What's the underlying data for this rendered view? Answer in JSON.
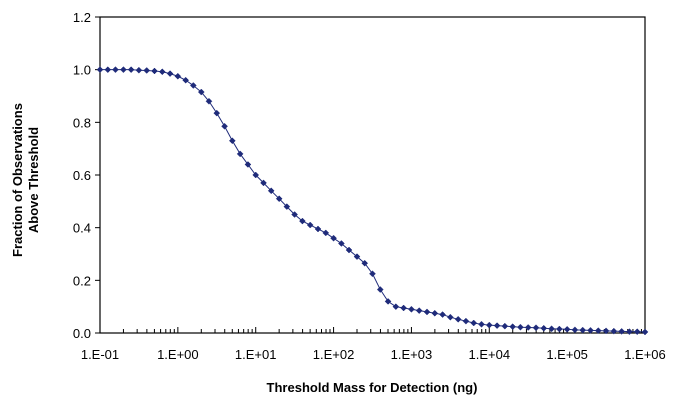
{
  "chart_data": {
    "type": "line",
    "title": "",
    "xlabel": "Threshold Mass for Detection (ng)",
    "ylabel_line1": "Fraction of Observations",
    "ylabel_line2": "Above Threshold",
    "x_scale": "log",
    "xlim": [
      0.1,
      1000000
    ],
    "ylim": [
      0.0,
      1.2
    ],
    "grid": false,
    "legend": "none",
    "x_tick_labels": [
      "1.E-01",
      "1.E+00",
      "1.E+01",
      "1.E+02",
      "1.E+03",
      "1.E+04",
      "1.E+05",
      "1.E+06"
    ],
    "y_tick_labels": [
      "0.0",
      "0.2",
      "0.4",
      "0.6",
      "0.8",
      "1.0",
      "1.2"
    ],
    "series": [
      {
        "color": "#1f2b7a",
        "marker": "diamond",
        "x": [
          0.1,
          0.126,
          0.158,
          0.2,
          0.251,
          0.316,
          0.398,
          0.501,
          0.631,
          0.794,
          1.0,
          1.26,
          1.58,
          2.0,
          2.51,
          3.16,
          3.98,
          5.01,
          6.31,
          7.94,
          10.0,
          12.6,
          15.8,
          20.0,
          25.1,
          31.6,
          39.8,
          50.1,
          63.1,
          79.4,
          100,
          126,
          158,
          200,
          251,
          316,
          398,
          501,
          631,
          794,
          1000,
          1259,
          1585,
          1995,
          2512,
          3162,
          3981,
          5012,
          6310,
          7943,
          10000,
          12589,
          15849,
          19953,
          25119,
          31623,
          39811,
          50119,
          63096,
          79433,
          100000,
          125893,
          158489,
          199526,
          251189,
          316228,
          398107,
          501187,
          630957,
          794328,
          1000000
        ],
        "y": [
          1.0,
          1.0,
          1.0,
          1.0,
          1.0,
          0.998,
          0.997,
          0.995,
          0.992,
          0.985,
          0.975,
          0.96,
          0.94,
          0.915,
          0.88,
          0.835,
          0.785,
          0.73,
          0.68,
          0.64,
          0.6,
          0.57,
          0.54,
          0.51,
          0.48,
          0.45,
          0.425,
          0.41,
          0.395,
          0.38,
          0.36,
          0.34,
          0.315,
          0.29,
          0.265,
          0.225,
          0.165,
          0.12,
          0.1,
          0.095,
          0.09,
          0.085,
          0.08,
          0.075,
          0.07,
          0.06,
          0.052,
          0.045,
          0.038,
          0.033,
          0.03,
          0.028,
          0.026,
          0.024,
          0.022,
          0.021,
          0.02,
          0.018,
          0.016,
          0.015,
          0.014,
          0.012,
          0.011,
          0.01,
          0.009,
          0.008,
          0.007,
          0.006,
          0.005,
          0.005,
          0.004
        ]
      }
    ]
  }
}
